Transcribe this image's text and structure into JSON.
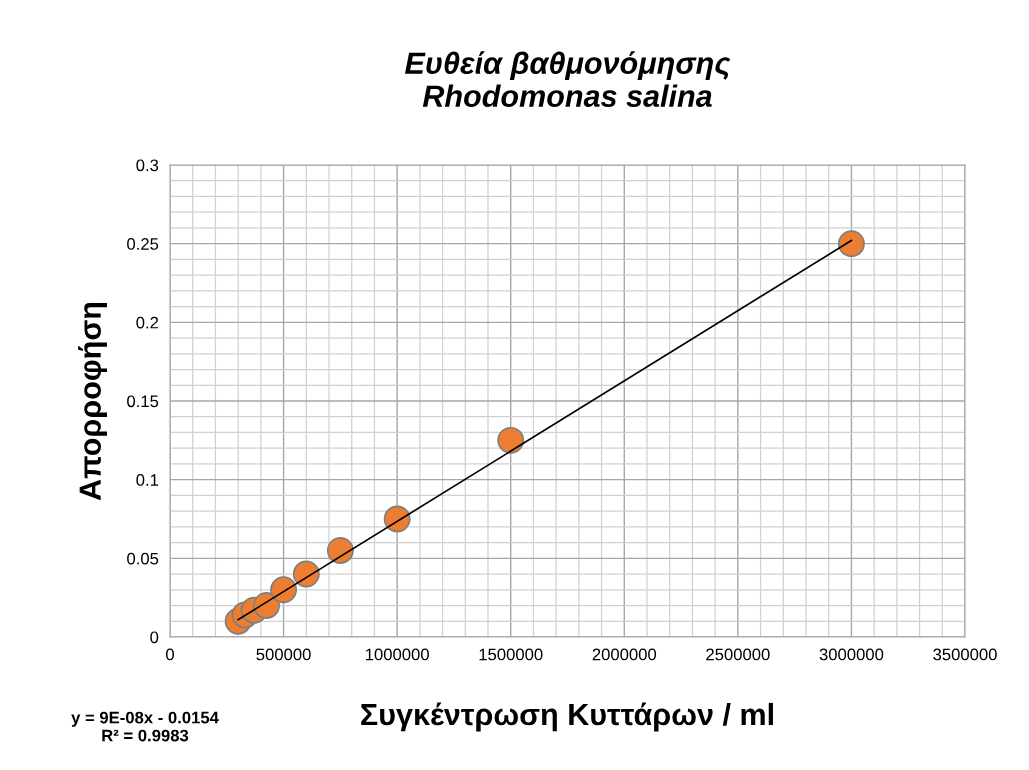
{
  "chart_data": {
    "type": "scatter",
    "title": "Ευθεία βαθμονόμησης\nRhodomonas salina",
    "xlabel": "Συγκέντρωση Κυττάρων / ml",
    "ylabel": "Απορροφήση",
    "x": [
      300000,
      330000,
      370000,
      425000,
      500000,
      600000,
      750000,
      1000000,
      1500000,
      3000000
    ],
    "series": [
      {
        "color": "#ed7d31",
        "values": [
          0.01,
          0.014,
          0.017,
          0.02,
          0.03,
          0.04,
          0.055,
          0.075,
          0.125,
          0.25
        ],
        "marker": "circle"
      },
      {
        "type": "line",
        "color": "#000000",
        "x": [
          300000,
          3000000
        ],
        "values": [
          0.011,
          0.252
        ],
        "marker": "none"
      }
    ],
    "xlim": [
      0,
      3500000
    ],
    "xticks": [
      0,
      500000,
      1000000,
      1500000,
      2000000,
      2500000,
      3000000,
      3500000
    ],
    "ylim": [
      0,
      0.3
    ],
    "yticks": [
      0,
      0.05,
      0.1,
      0.15,
      0.2,
      0.25,
      0.3
    ],
    "grid": true,
    "legend": false,
    "annotations": [
      "y = 9E-08x - 0.0154\nR² = 0.9983"
    ]
  }
}
